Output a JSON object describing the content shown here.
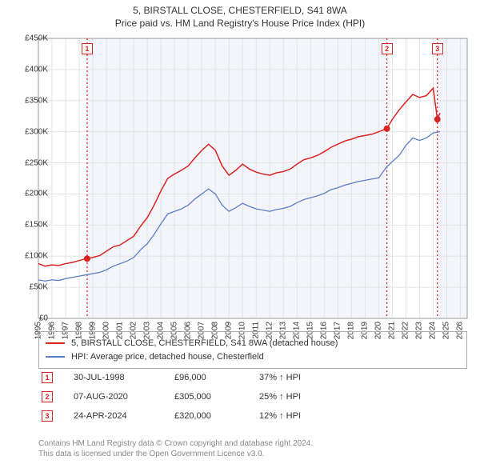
{
  "title": {
    "line1": "5, BIRSTALL CLOSE, CHESTERFIELD, S41 8WA",
    "line2": "Price paid vs. HM Land Registry's House Price Index (HPI)"
  },
  "chart": {
    "type": "line",
    "background_color": "#ffffff",
    "shade_color": "#f3f5fb",
    "grid_color": "#e4e4e4",
    "ylim": [
      0,
      450000
    ],
    "ytick_step": 50000,
    "y_format_prefix": "£",
    "y_format_suffix": "K",
    "x_years": [
      1995,
      1996,
      1997,
      1998,
      1999,
      2000,
      2001,
      2002,
      2003,
      2004,
      2005,
      2006,
      2007,
      2008,
      2009,
      2010,
      2011,
      2012,
      2013,
      2014,
      2015,
      2016,
      2017,
      2018,
      2019,
      2020,
      2021,
      2022,
      2023,
      2024,
      2025,
      2026
    ],
    "x_range": [
      1995,
      2026.5
    ],
    "shade_ranges": [
      [
        1998.58,
        2020.6
      ],
      [
        2024.31,
        2026.5
      ]
    ],
    "series": [
      {
        "name": "property",
        "label": "5, BIRSTALL CLOSE, CHESTERFIELD, S41 8WA (detached house)",
        "color": "#d92222",
        "line_width": 1.5,
        "points": [
          [
            1995.0,
            88000
          ],
          [
            1995.5,
            84000
          ],
          [
            1996.0,
            86000
          ],
          [
            1996.5,
            85000
          ],
          [
            1997.0,
            88000
          ],
          [
            1997.5,
            90000
          ],
          [
            1998.0,
            93000
          ],
          [
            1998.5,
            96000
          ],
          [
            1999.0,
            98000
          ],
          [
            1999.5,
            101000
          ],
          [
            2000.0,
            108000
          ],
          [
            2000.5,
            115000
          ],
          [
            2001.0,
            118000
          ],
          [
            2001.5,
            125000
          ],
          [
            2002.0,
            132000
          ],
          [
            2002.5,
            148000
          ],
          [
            2003.0,
            162000
          ],
          [
            2003.5,
            182000
          ],
          [
            2004.0,
            205000
          ],
          [
            2004.5,
            225000
          ],
          [
            2005.0,
            232000
          ],
          [
            2005.5,
            238000
          ],
          [
            2006.0,
            245000
          ],
          [
            2006.5,
            258000
          ],
          [
            2007.0,
            270000
          ],
          [
            2007.5,
            280000
          ],
          [
            2008.0,
            270000
          ],
          [
            2008.5,
            245000
          ],
          [
            2009.0,
            230000
          ],
          [
            2009.5,
            238000
          ],
          [
            2010.0,
            248000
          ],
          [
            2010.5,
            240000
          ],
          [
            2011.0,
            235000
          ],
          [
            2011.5,
            232000
          ],
          [
            2012.0,
            230000
          ],
          [
            2012.5,
            234000
          ],
          [
            2013.0,
            236000
          ],
          [
            2013.5,
            240000
          ],
          [
            2014.0,
            248000
          ],
          [
            2014.5,
            255000
          ],
          [
            2015.0,
            258000
          ],
          [
            2015.5,
            262000
          ],
          [
            2016.0,
            268000
          ],
          [
            2016.5,
            275000
          ],
          [
            2017.0,
            280000
          ],
          [
            2017.5,
            285000
          ],
          [
            2018.0,
            288000
          ],
          [
            2018.5,
            292000
          ],
          [
            2019.0,
            294000
          ],
          [
            2019.5,
            296000
          ],
          [
            2020.0,
            300000
          ],
          [
            2020.6,
            305000
          ],
          [
            2021.0,
            320000
          ],
          [
            2021.5,
            335000
          ],
          [
            2022.0,
            348000
          ],
          [
            2022.5,
            360000
          ],
          [
            2023.0,
            355000
          ],
          [
            2023.5,
            358000
          ],
          [
            2024.0,
            370000
          ],
          [
            2024.31,
            320000
          ],
          [
            2024.5,
            330000
          ]
        ]
      },
      {
        "name": "hpi",
        "label": "HPI: Average price, detached house, Chesterfield",
        "color": "#5b7fc7",
        "line_width": 1.3,
        "points": [
          [
            1995.0,
            62000
          ],
          [
            1995.5,
            60000
          ],
          [
            1996.0,
            62000
          ],
          [
            1996.5,
            61000
          ],
          [
            1997.0,
            64000
          ],
          [
            1997.5,
            66000
          ],
          [
            1998.0,
            68000
          ],
          [
            1998.5,
            70000
          ],
          [
            1999.0,
            72000
          ],
          [
            1999.5,
            74000
          ],
          [
            2000.0,
            78000
          ],
          [
            2000.5,
            84000
          ],
          [
            2001.0,
            88000
          ],
          [
            2001.5,
            92000
          ],
          [
            2002.0,
            98000
          ],
          [
            2002.5,
            110000
          ],
          [
            2003.0,
            120000
          ],
          [
            2003.5,
            135000
          ],
          [
            2004.0,
            152000
          ],
          [
            2004.5,
            168000
          ],
          [
            2005.0,
            172000
          ],
          [
            2005.5,
            176000
          ],
          [
            2006.0,
            182000
          ],
          [
            2006.5,
            192000
          ],
          [
            2007.0,
            200000
          ],
          [
            2007.5,
            208000
          ],
          [
            2008.0,
            200000
          ],
          [
            2008.5,
            182000
          ],
          [
            2009.0,
            172000
          ],
          [
            2009.5,
            178000
          ],
          [
            2010.0,
            185000
          ],
          [
            2010.5,
            180000
          ],
          [
            2011.0,
            176000
          ],
          [
            2011.5,
            174000
          ],
          [
            2012.0,
            172000
          ],
          [
            2012.5,
            175000
          ],
          [
            2013.0,
            177000
          ],
          [
            2013.5,
            180000
          ],
          [
            2014.0,
            186000
          ],
          [
            2014.5,
            191000
          ],
          [
            2015.0,
            194000
          ],
          [
            2015.5,
            197000
          ],
          [
            2016.0,
            201000
          ],
          [
            2016.5,
            207000
          ],
          [
            2017.0,
            210000
          ],
          [
            2017.5,
            214000
          ],
          [
            2018.0,
            217000
          ],
          [
            2018.5,
            220000
          ],
          [
            2019.0,
            222000
          ],
          [
            2019.5,
            224000
          ],
          [
            2020.0,
            226000
          ],
          [
            2020.6,
            244000
          ],
          [
            2021.0,
            252000
          ],
          [
            2021.5,
            262000
          ],
          [
            2022.0,
            278000
          ],
          [
            2022.5,
            290000
          ],
          [
            2023.0,
            286000
          ],
          [
            2023.5,
            290000
          ],
          [
            2024.0,
            298000
          ],
          [
            2024.5,
            300000
          ]
        ]
      }
    ],
    "event_markers": [
      {
        "n": "1",
        "x": 1998.58,
        "color": "#d92222",
        "point_y": 96000
      },
      {
        "n": "2",
        "x": 2020.6,
        "color": "#d92222",
        "point_y": 305000
      },
      {
        "n": "3",
        "x": 2024.31,
        "color": "#d92222",
        "point_y": 320000
      }
    ]
  },
  "legend": {
    "items": [
      {
        "color": "#d92222",
        "label": "5, BIRSTALL CLOSE, CHESTERFIELD, S41 8WA (detached house)"
      },
      {
        "color": "#5b7fc7",
        "label": "HPI: Average price, detached house, Chesterfield"
      }
    ]
  },
  "events": [
    {
      "n": "1",
      "color": "#d92222",
      "date": "30-JUL-1998",
      "price": "£96,000",
      "hpi": "37% ↑ HPI"
    },
    {
      "n": "2",
      "color": "#d92222",
      "date": "07-AUG-2020",
      "price": "£305,000",
      "hpi": "25% ↑ HPI"
    },
    {
      "n": "3",
      "color": "#d92222",
      "date": "24-APR-2024",
      "price": "£320,000",
      "hpi": "12% ↑ HPI"
    }
  ],
  "footer": {
    "line1": "Contains HM Land Registry data © Crown copyright and database right 2024.",
    "line2": "This data is licensed under the Open Government Licence v3.0."
  }
}
